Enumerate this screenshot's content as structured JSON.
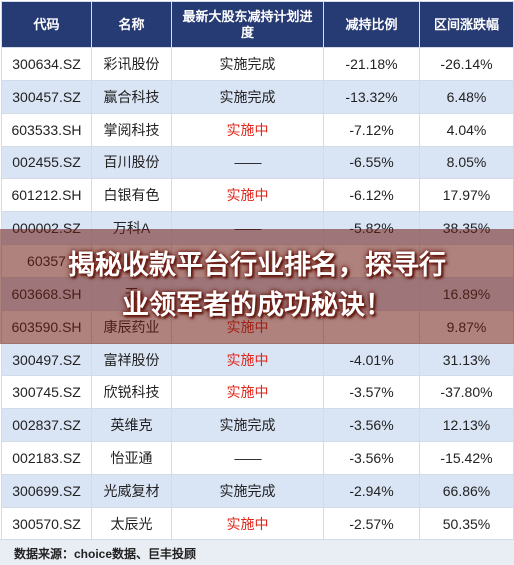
{
  "table": {
    "headers": [
      "代码",
      "名称",
      "最新大股东减持计划进度",
      "减持比例",
      "区间涨跌幅"
    ],
    "rows": [
      {
        "code": "300634.SZ",
        "name": "彩讯股份",
        "status": "实施完成",
        "status_type": "done",
        "ratio": "-21.18%",
        "change": "-26.14%"
      },
      {
        "code": "300457.SZ",
        "name": "赢合科技",
        "status": "实施完成",
        "status_type": "done",
        "ratio": "-13.32%",
        "change": "6.48%"
      },
      {
        "code": "603533.SH",
        "name": "掌阅科技",
        "status": "实施中",
        "status_type": "active",
        "ratio": "-7.12%",
        "change": "4.04%"
      },
      {
        "code": "002455.SZ",
        "name": "百川股份",
        "status": "——",
        "status_type": "none",
        "ratio": "-6.55%",
        "change": "8.05%"
      },
      {
        "code": "601212.SH",
        "name": "白银有色",
        "status": "实施中",
        "status_type": "active",
        "ratio": "-6.12%",
        "change": "17.97%"
      },
      {
        "code": "000002.SZ",
        "name": "万科A",
        "status": "——",
        "status_type": "none",
        "ratio": "-5.82%",
        "change": "38.35%"
      },
      {
        "code": "60357",
        "name": "",
        "status": "",
        "status_type": "hidden",
        "ratio": "",
        "change": ""
      },
      {
        "code": "603668.SH",
        "name": "天",
        "status": "",
        "status_type": "hidden",
        "ratio": "",
        "change": "16.89%"
      },
      {
        "code": "603590.SH",
        "name": "康辰药业",
        "status": "实施中",
        "status_type": "active",
        "ratio": "",
        "change": "9.87%"
      },
      {
        "code": "300497.SZ",
        "name": "富祥股份",
        "status": "实施中",
        "status_type": "active",
        "ratio": "-4.01%",
        "change": "31.13%"
      },
      {
        "code": "300745.SZ",
        "name": "欣锐科技",
        "status": "实施中",
        "status_type": "active",
        "ratio": "-3.57%",
        "change": "-37.80%"
      },
      {
        "code": "002837.SZ",
        "name": "英维克",
        "status": "实施完成",
        "status_type": "done",
        "ratio": "-3.56%",
        "change": "12.13%"
      },
      {
        "code": "002183.SZ",
        "name": "怡亚通",
        "status": "——",
        "status_type": "none",
        "ratio": "-3.56%",
        "change": "-15.42%"
      },
      {
        "code": "300699.SZ",
        "name": "光威复材",
        "status": "实施完成",
        "status_type": "done",
        "ratio": "-2.94%",
        "change": "66.86%"
      },
      {
        "code": "300570.SZ",
        "name": "太辰光",
        "status": "实施中",
        "status_type": "active",
        "ratio": "-2.57%",
        "change": "50.35%"
      }
    ]
  },
  "footer": {
    "source": "数据来源：choice数据、巨丰投顾"
  },
  "overlay": {
    "line1": "揭秘收款平台行业排名，探寻行",
    "line2": "业领军者的成功秘诀！"
  },
  "colors": {
    "header_bg": "#263a73",
    "status_active": "#e0261b",
    "row_alt": "#d9e4f5"
  }
}
